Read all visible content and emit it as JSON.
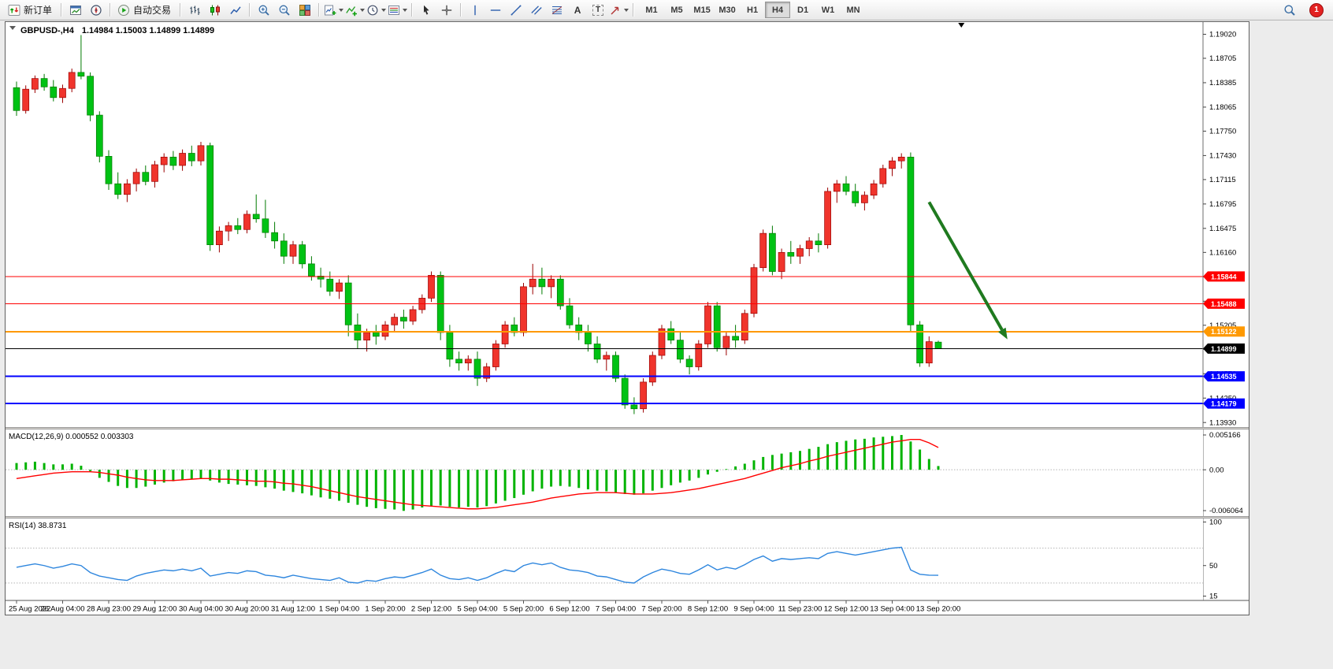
{
  "toolbar": {
    "new_order": "新订单",
    "auto_trading": "自动交易",
    "timeframes": [
      "M1",
      "M5",
      "M15",
      "M30",
      "H1",
      "H4",
      "D1",
      "W1",
      "MN"
    ],
    "active_timeframe": "H4",
    "notification_badge": "1",
    "icon_glyphs": {
      "text_tool": "A",
      "label_tool": "T"
    }
  },
  "chart_data": {
    "type": "candlestick",
    "symbol_period": "GBPUSD-,H4",
    "ohlc_text": "1.14984 1.15003 1.14899 1.14899",
    "price_max": 1.1918,
    "price_min": 1.1387,
    "price_axis_labels": [
      "1.19020",
      "1.18705",
      "1.18385",
      "1.18065",
      "1.17750",
      "1.17430",
      "1.17115",
      "1.16795",
      "1.16475",
      "1.16160",
      "1.15840",
      "1.15520",
      "1.15205",
      "1.14890",
      "1.14570",
      "1.14250",
      "1.13930"
    ],
    "time_labels": [
      "25 Aug 2022",
      "26 Aug 04:00",
      "28 Aug 23:00",
      "29 Aug 12:00",
      "30 Aug 04:00",
      "30 Aug 20:00",
      "31 Aug 12:00",
      "1 Sep 04:00",
      "1 Sep 20:00",
      "2 Sep 12:00",
      "5 Sep 04:00",
      "5 Sep 20:00",
      "6 Sep 12:00",
      "7 Sep 04:00",
      "7 Sep 20:00",
      "8 Sep 12:00",
      "9 Sep 04:00",
      "11 Sep 23:00",
      "12 Sep 12:00",
      "13 Sep 04:00",
      "13 Sep 20:00"
    ],
    "bars_per_label": 5,
    "colors": {
      "up": "#f0342c",
      "up_edge": "#9b0000",
      "down": "#00c214",
      "down_edge": "#007a00",
      "background": "#ffffff"
    },
    "candles": [
      [
        1.1832,
        1.184,
        1.1795,
        1.1802
      ],
      [
        1.1802,
        1.1835,
        1.1798,
        1.183
      ],
      [
        1.183,
        1.1848,
        1.1825,
        1.1844
      ],
      [
        1.1844,
        1.185,
        1.1828,
        1.1833
      ],
      [
        1.1833,
        1.1842,
        1.1814,
        1.1819
      ],
      [
        1.1819,
        1.1836,
        1.1812,
        1.1831
      ],
      [
        1.1831,
        1.1857,
        1.1826,
        1.1852
      ],
      [
        1.1852,
        1.1901,
        1.1843,
        1.1847
      ],
      [
        1.1847,
        1.1852,
        1.1788,
        1.1796
      ],
      [
        1.1796,
        1.1801,
        1.1734,
        1.1742
      ],
      [
        1.1742,
        1.175,
        1.1698,
        1.1706
      ],
      [
        1.1706,
        1.1721,
        1.1686,
        1.1692
      ],
      [
        1.1692,
        1.1712,
        1.1682,
        1.1706
      ],
      [
        1.1706,
        1.1726,
        1.1696,
        1.1721
      ],
      [
        1.1721,
        1.173,
        1.1704,
        1.1709
      ],
      [
        1.1709,
        1.1736,
        1.1701,
        1.1731
      ],
      [
        1.1731,
        1.1746,
        1.1721,
        1.1741
      ],
      [
        1.1741,
        1.1749,
        1.1724,
        1.173
      ],
      [
        1.173,
        1.1751,
        1.1723,
        1.1746
      ],
      [
        1.1746,
        1.1756,
        1.1729,
        1.1736
      ],
      [
        1.1736,
        1.1761,
        1.173,
        1.1756
      ],
      [
        1.1756,
        1.176,
        1.1618,
        1.1626
      ],
      [
        1.1626,
        1.165,
        1.1616,
        1.1644
      ],
      [
        1.1644,
        1.1656,
        1.1631,
        1.1651
      ],
      [
        1.1651,
        1.1661,
        1.164,
        1.1646
      ],
      [
        1.1646,
        1.1671,
        1.1641,
        1.1666
      ],
      [
        1.1666,
        1.1692,
        1.1655,
        1.166
      ],
      [
        1.166,
        1.1685,
        1.1635,
        1.1642
      ],
      [
        1.1642,
        1.1656,
        1.1621,
        1.1631
      ],
      [
        1.1631,
        1.1641,
        1.1601,
        1.1611
      ],
      [
        1.1611,
        1.1631,
        1.1601,
        1.1626
      ],
      [
        1.1626,
        1.1631,
        1.1595,
        1.1601
      ],
      [
        1.1601,
        1.1611,
        1.1579,
        1.1585
      ],
      [
        1.1585,
        1.1596,
        1.157,
        1.1581
      ],
      [
        1.1581,
        1.1591,
        1.1559,
        1.1565
      ],
      [
        1.1565,
        1.1581,
        1.1555,
        1.1576
      ],
      [
        1.1576,
        1.1586,
        1.1506,
        1.1521
      ],
      [
        1.1521,
        1.1536,
        1.149,
        1.1501
      ],
      [
        1.1501,
        1.1516,
        1.1486,
        1.1511
      ],
      [
        1.1511,
        1.1521,
        1.1495,
        1.1506
      ],
      [
        1.1506,
        1.1526,
        1.1501,
        1.1521
      ],
      [
        1.1521,
        1.1536,
        1.1511,
        1.1531
      ],
      [
        1.1531,
        1.1541,
        1.1516,
        1.1526
      ],
      [
        1.1526,
        1.1546,
        1.1521,
        1.1541
      ],
      [
        1.1541,
        1.1561,
        1.1536,
        1.1556
      ],
      [
        1.1556,
        1.1591,
        1.1551,
        1.1586
      ],
      [
        1.1586,
        1.1591,
        1.1501,
        1.1511
      ],
      [
        1.1511,
        1.1521,
        1.1466,
        1.1476
      ],
      [
        1.1476,
        1.1486,
        1.1461,
        1.1471
      ],
      [
        1.1471,
        1.1481,
        1.1461,
        1.1476
      ],
      [
        1.1476,
        1.1486,
        1.1441,
        1.1451
      ],
      [
        1.1451,
        1.1471,
        1.1446,
        1.1466
      ],
      [
        1.1466,
        1.1501,
        1.1461,
        1.1496
      ],
      [
        1.1496,
        1.1526,
        1.1491,
        1.1521
      ],
      [
        1.1521,
        1.1531,
        1.1506,
        1.1511
      ],
      [
        1.1511,
        1.1576,
        1.1506,
        1.1571
      ],
      [
        1.1571,
        1.1601,
        1.1561,
        1.1581
      ],
      [
        1.1581,
        1.1596,
        1.1561,
        1.1571
      ],
      [
        1.1571,
        1.1586,
        1.1556,
        1.1581
      ],
      [
        1.1581,
        1.1586,
        1.1541,
        1.1546
      ],
      [
        1.1546,
        1.1556,
        1.1516,
        1.1521
      ],
      [
        1.1521,
        1.1531,
        1.1501,
        1.1511
      ],
      [
        1.1511,
        1.1521,
        1.1486,
        1.1496
      ],
      [
        1.1496,
        1.1506,
        1.1471,
        1.1476
      ],
      [
        1.1476,
        1.1486,
        1.1461,
        1.1481
      ],
      [
        1.1481,
        1.1486,
        1.1446,
        1.1451
      ],
      [
        1.1451,
        1.1456,
        1.1411,
        1.1416
      ],
      [
        1.1416,
        1.1426,
        1.1404,
        1.1411
      ],
      [
        1.1411,
        1.1451,
        1.1406,
        1.1446
      ],
      [
        1.1446,
        1.1486,
        1.1441,
        1.1481
      ],
      [
        1.1481,
        1.1521,
        1.1476,
        1.1516
      ],
      [
        1.1516,
        1.1526,
        1.1496,
        1.1501
      ],
      [
        1.1501,
        1.1511,
        1.1471,
        1.1476
      ],
      [
        1.1476,
        1.1481,
        1.1456,
        1.1466
      ],
      [
        1.1466,
        1.1501,
        1.1461,
        1.1496
      ],
      [
        1.1496,
        1.1551,
        1.1491,
        1.1546
      ],
      [
        1.1546,
        1.1551,
        1.1486,
        1.1491
      ],
      [
        1.1491,
        1.1511,
        1.1481,
        1.1506
      ],
      [
        1.1506,
        1.1521,
        1.1491,
        1.1501
      ],
      [
        1.1501,
        1.1541,
        1.1496,
        1.1536
      ],
      [
        1.1536,
        1.1601,
        1.1531,
        1.1596
      ],
      [
        1.1596,
        1.1646,
        1.1591,
        1.1641
      ],
      [
        1.1641,
        1.1651,
        1.1586,
        1.1591
      ],
      [
        1.1591,
        1.1621,
        1.1581,
        1.1616
      ],
      [
        1.1616,
        1.1631,
        1.1601,
        1.1611
      ],
      [
        1.1611,
        1.1626,
        1.1601,
        1.1621
      ],
      [
        1.1621,
        1.1636,
        1.1611,
        1.1631
      ],
      [
        1.1631,
        1.1641,
        1.1616,
        1.1626
      ],
      [
        1.1626,
        1.1701,
        1.1621,
        1.1696
      ],
      [
        1.1696,
        1.1711,
        1.1681,
        1.1706
      ],
      [
        1.1706,
        1.1716,
        1.1691,
        1.1696
      ],
      [
        1.1696,
        1.1706,
        1.1676,
        1.1681
      ],
      [
        1.1681,
        1.1696,
        1.1671,
        1.1691
      ],
      [
        1.1691,
        1.1711,
        1.1686,
        1.1706
      ],
      [
        1.1706,
        1.1731,
        1.1701,
        1.1726
      ],
      [
        1.1726,
        1.1741,
        1.1716,
        1.1736
      ],
      [
        1.1736,
        1.1746,
        1.1726,
        1.1741
      ],
      [
        1.1741,
        1.1747,
        1.1511,
        1.1521
      ],
      [
        1.1521,
        1.1526,
        1.1466,
        1.1471
      ],
      [
        1.1471,
        1.1506,
        1.1466,
        1.1499
      ],
      [
        1.14984,
        1.15003,
        1.14899,
        1.14899
      ]
    ],
    "hlines": [
      {
        "price": 1.15844,
        "label": "1.15844",
        "color": "#ff0000",
        "width": 1
      },
      {
        "price": 1.15488,
        "label": "1.15488",
        "color": "#ff0000",
        "width": 1
      },
      {
        "price": 1.15122,
        "label": "1.15122",
        "color": "#ff9900",
        "width": 2
      },
      {
        "price": 1.14899,
        "label": "1.14899",
        "color": "#000000",
        "width": 1
      },
      {
        "price": 1.14535,
        "label": "1.14535",
        "color": "#0000ff",
        "width": 2
      },
      {
        "price": 1.14179,
        "label": "1.14179",
        "color": "#0000ff",
        "width": 2
      }
    ],
    "arrow": {
      "from_bar": 99,
      "from_price": 1.1682,
      "to_bar": 107.5,
      "to_price": 1.1502,
      "color": "#1f7a1f"
    },
    "shift_marker_bar": 102.5,
    "macd": {
      "label": "MACD(12,26,9) 0.000552 0.003303",
      "max": 0.005166,
      "min": -0.006064,
      "scale": [
        {
          "v": 0.005166,
          "label": "0.005166"
        },
        {
          "v": 0,
          "label": "0.00"
        },
        {
          "v": -0.006064,
          "label": "-0.006064"
        }
      ],
      "colors": {
        "histogram": "#00b300",
        "signal": "#ff0000"
      },
      "histogram": [
        0.001,
        0.0011,
        0.0012,
        0.001,
        0.0008,
        0.0008,
        0.0009,
        0.0006,
        -0.0002,
        -0.0012,
        -0.0018,
        -0.0024,
        -0.0027,
        -0.0027,
        -0.0025,
        -0.0022,
        -0.0019,
        -0.0017,
        -0.0015,
        -0.0014,
        -0.0013,
        -0.0016,
        -0.0019,
        -0.0021,
        -0.0022,
        -0.0023,
        -0.0024,
        -0.0026,
        -0.0028,
        -0.0031,
        -0.0033,
        -0.0035,
        -0.0038,
        -0.0041,
        -0.0043,
        -0.0046,
        -0.0049,
        -0.0052,
        -0.0055,
        -0.0057,
        -0.0058,
        -0.0059,
        -0.0061,
        -0.0059,
        -0.0056,
        -0.0054,
        -0.0053,
        -0.0055,
        -0.0056,
        -0.0055,
        -0.0056,
        -0.0054,
        -0.005,
        -0.0046,
        -0.0042,
        -0.0037,
        -0.0032,
        -0.0028,
        -0.0025,
        -0.0024,
        -0.0025,
        -0.0027,
        -0.0029,
        -0.0031,
        -0.0032,
        -0.0034,
        -0.0036,
        -0.0037,
        -0.0035,
        -0.0031,
        -0.0027,
        -0.0023,
        -0.0019,
        -0.0016,
        -0.0012,
        -0.0007,
        -0.0003,
        0.0001,
        0.0005,
        0.0009,
        0.0014,
        0.0019,
        0.0022,
        0.0024,
        0.0026,
        0.0028,
        0.0031,
        0.0034,
        0.0038,
        0.0041,
        0.0043,
        0.0045,
        0.0046,
        0.0048,
        0.0049,
        0.005,
        0.005166,
        0.0042,
        0.003,
        0.0016,
        0.000552
      ],
      "signal": [
        -0.0013,
        -0.0011,
        -0.0009,
        -0.0007,
        -0.0005,
        -0.0004,
        -0.0003,
        -0.0003,
        -0.0003,
        -0.0004,
        -0.0006,
        -0.0008,
        -0.0011,
        -0.0013,
        -0.0015,
        -0.0016,
        -0.0016,
        -0.0016,
        -0.0015,
        -0.0014,
        -0.0013,
        -0.0013,
        -0.0014,
        -0.0014,
        -0.0015,
        -0.0016,
        -0.0017,
        -0.0017,
        -0.0018,
        -0.002,
        -0.0021,
        -0.0023,
        -0.0025,
        -0.0028,
        -0.0031,
        -0.0034,
        -0.0037,
        -0.004,
        -0.0042,
        -0.0044,
        -0.0046,
        -0.0048,
        -0.005,
        -0.0052,
        -0.0053,
        -0.0054,
        -0.0055,
        -0.0056,
        -0.0057,
        -0.0058,
        -0.0058,
        -0.0057,
        -0.0056,
        -0.0054,
        -0.0052,
        -0.005,
        -0.0048,
        -0.0045,
        -0.0042,
        -0.004,
        -0.0038,
        -0.0036,
        -0.0035,
        -0.0034,
        -0.0034,
        -0.0034,
        -0.0035,
        -0.0036,
        -0.0036,
        -0.0036,
        -0.0035,
        -0.0034,
        -0.0032,
        -0.003,
        -0.0028,
        -0.0025,
        -0.0022,
        -0.0019,
        -0.0016,
        -0.0013,
        -0.0009,
        -0.0005,
        -0.0001,
        0.0003,
        0.0006,
        0.0009,
        0.0013,
        0.0016,
        0.002,
        0.0023,
        0.0026,
        0.0029,
        0.0032,
        0.0035,
        0.0038,
        0.0041,
        0.0043,
        0.0045,
        0.0045,
        0.004,
        0.003303
      ]
    },
    "rsi": {
      "label": "RSI(14) 38.8731",
      "display_max": 104,
      "display_min": 10,
      "scale": [
        {
          "v": 100,
          "label": "100"
        },
        {
          "v": 50,
          "label": "50"
        },
        {
          "v": 15,
          "label": "15"
        }
      ],
      "levels": [
        70,
        30
      ],
      "color": "#2e86de",
      "values": [
        48,
        50,
        52,
        50,
        47,
        49,
        52,
        50,
        42,
        38,
        36,
        34,
        33,
        38,
        41,
        43,
        45,
        44,
        46,
        44,
        47,
        38,
        40,
        42,
        41,
        44,
        43,
        39,
        38,
        36,
        39,
        37,
        35,
        34,
        33,
        36,
        31,
        30,
        33,
        32,
        35,
        37,
        36,
        39,
        42,
        46,
        39,
        35,
        34,
        36,
        33,
        36,
        41,
        45,
        43,
        50,
        53,
        51,
        53,
        48,
        45,
        44,
        42,
        38,
        37,
        34,
        31,
        30,
        37,
        42,
        46,
        44,
        41,
        40,
        45,
        51,
        45,
        48,
        46,
        51,
        57,
        61,
        55,
        58,
        57,
        58,
        59,
        58,
        64,
        66,
        64,
        62,
        64,
        66,
        68,
        70,
        71,
        45,
        40,
        39,
        38.87
      ]
    }
  }
}
